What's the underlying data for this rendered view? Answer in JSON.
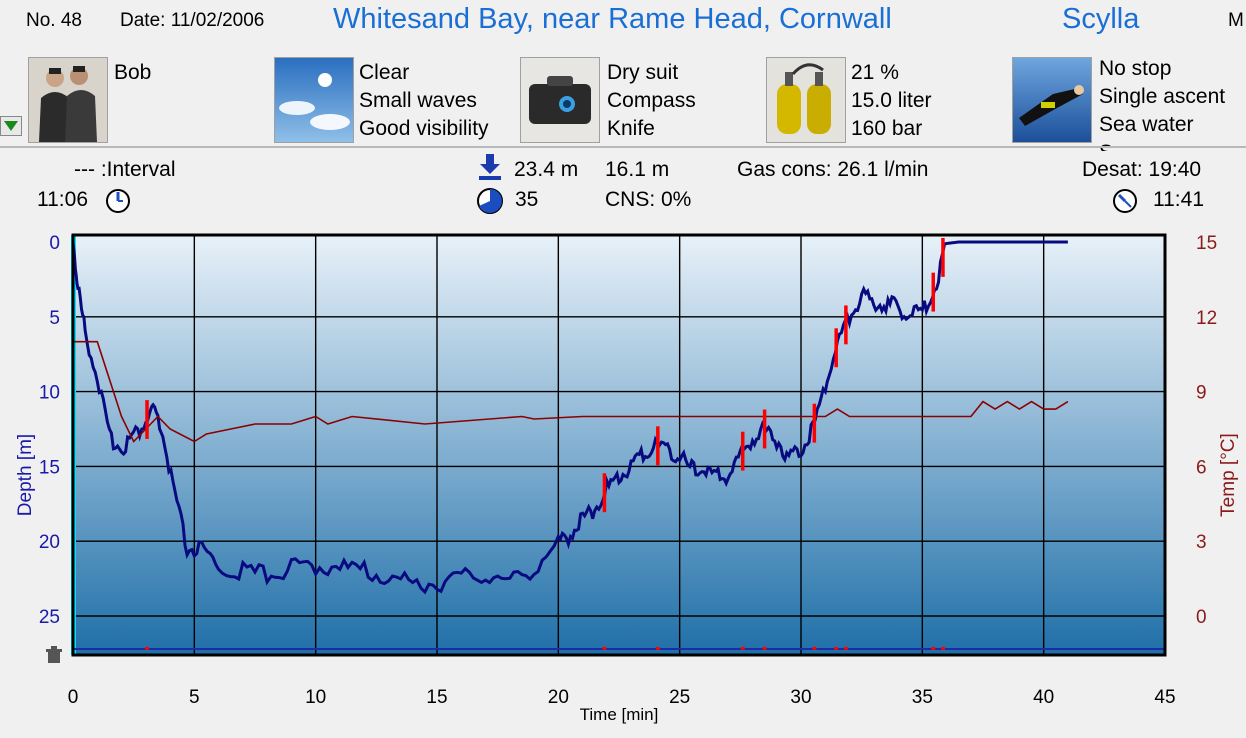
{
  "header": {
    "dive_no": "No. 48",
    "date": "Date: 11/02/2006",
    "location": "Whitesand Bay, near Rame Head, Cornwall",
    "site": "Scylla",
    "cut_text": "M"
  },
  "panels": {
    "buddy": {
      "lines": [
        "Bob"
      ],
      "icon": "divers-photo-icon"
    },
    "conditions": {
      "lines": [
        "Clear",
        "Small waves",
        "Good visibility"
      ],
      "icon": "sky-photo-icon"
    },
    "equipment": {
      "lines": [
        "Dry suit",
        "Compass",
        "Knife"
      ],
      "icon": "dive-bag-photo-icon"
    },
    "gas": {
      "lines": [
        "21 %",
        "15.0 liter",
        "160 bar"
      ],
      "icon": "tanks-photo-icon"
    },
    "profile": {
      "lines": [
        "No stop",
        "Single ascent",
        "Sea water",
        "S"
      ],
      "icon": "diver-photo-icon"
    }
  },
  "stats": {
    "interval": "--- :Interval",
    "entry_time": "11:06",
    "max_depth": "23.4 m",
    "avg_depth": "16.1 m",
    "duration": "35",
    "cns": "CNS:  0%",
    "gas_cons": "Gas cons: 26.1 l/min",
    "desat": "Desat: 19:40",
    "exit_time": "11:41"
  },
  "colors": {
    "title": "#1a6fd4",
    "depth_line": "#0a0a80",
    "temp_line": "#8b0000",
    "warning_segments": "#ff0000",
    "axis_left": "#1a1aa8",
    "axis_right": "#8b1a1a",
    "surface_marker": "#00e5ff"
  },
  "chart_data": {
    "type": "line",
    "xlabel": "Time [min]",
    "ylabel_left": "Depth [m]",
    "ylabel_right": "Temp [°C]",
    "xlim": [
      0,
      45
    ],
    "ylim_left": [
      0,
      28
    ],
    "ylim_right": [
      -3,
      15
    ],
    "x_ticks": [
      "0",
      "5",
      "10",
      "15",
      "20",
      "25",
      "30",
      "35",
      "40",
      "45"
    ],
    "y_ticks_left": [
      "0",
      "5",
      "10",
      "15",
      "20",
      "25"
    ],
    "y_ticks_right": [
      "15",
      "12",
      "9",
      "6",
      "3",
      "0"
    ],
    "grid": true,
    "series": [
      {
        "axis": "left",
        "x": [
          0,
          0.2,
          0.5,
          1,
          1.5,
          2,
          2.5,
          3,
          3.3,
          3.7,
          4.2,
          4.7,
          5.3,
          6,
          7,
          8,
          9,
          10,
          11,
          12,
          13,
          14,
          15,
          16,
          17,
          18,
          19,
          20,
          20.5,
          21,
          21.5,
          22,
          22.5,
          23,
          23.5,
          24,
          24.5,
          25,
          25.5,
          26,
          26.5,
          27,
          27.5,
          28,
          28.5,
          29,
          29.5,
          30,
          30.5,
          31,
          31.5,
          32,
          32.5,
          33,
          33.5,
          34,
          34.5,
          35,
          35.5,
          36,
          36.5,
          37,
          38,
          39,
          40,
          41
        ],
        "y": [
          0,
          3,
          6,
          9,
          13,
          13.7,
          13,
          12,
          11.2,
          13,
          17,
          20.5,
          20.6,
          21.8,
          22,
          22.2,
          21.8,
          21.6,
          21.7,
          22,
          22.4,
          22.8,
          22.9,
          22.4,
          22.3,
          22.7,
          21.8,
          20.2,
          19.5,
          18.5,
          17.8,
          16.5,
          15.8,
          14.9,
          14.2,
          13.6,
          13.7,
          14.4,
          15.2,
          15.2,
          15.7,
          15.6,
          14.2,
          13.1,
          12.5,
          13.2,
          14.4,
          13.8,
          12.4,
          9.5,
          6.8,
          5,
          3.6,
          4,
          4.1,
          4.4,
          4.8,
          4.7,
          3.2,
          0.1,
          0,
          0,
          0,
          0,
          0,
          0
        ]
      },
      {
        "axis": "right",
        "x": [
          0,
          1,
          1.5,
          2,
          2.5,
          3,
          3.5,
          4,
          5,
          5.5,
          6.5,
          7.5,
          9,
          10,
          10.5,
          11.5,
          14.5,
          18.5,
          19,
          21,
          23,
          25,
          29,
          31,
          31.5,
          32,
          33,
          37,
          37.5,
          38,
          38.5,
          39,
          39.5,
          40,
          40.5,
          41
        ],
        "y": [
          11,
          11,
          9.5,
          8,
          7,
          7.5,
          8,
          7.5,
          7,
          7.3,
          7.5,
          7.7,
          7.7,
          8,
          7.7,
          8,
          7.7,
          8,
          7.9,
          8,
          8,
          8,
          8,
          8,
          8.3,
          8,
          8,
          8,
          8.6,
          8.3,
          8.6,
          8.3,
          8.6,
          8.3,
          8.3,
          8.6
        ]
      }
    ],
    "warning_segments": [
      [
        3.0,
        3.1
      ],
      [
        21.8,
        22.0
      ],
      [
        24.0,
        24.2
      ],
      [
        27.5,
        27.7
      ],
      [
        28.4,
        28.6
      ],
      [
        30.5,
        30.6
      ],
      [
        31.4,
        31.5
      ],
      [
        31.8,
        31.9
      ],
      [
        35.4,
        35.5
      ],
      [
        35.8,
        35.9
      ]
    ]
  }
}
